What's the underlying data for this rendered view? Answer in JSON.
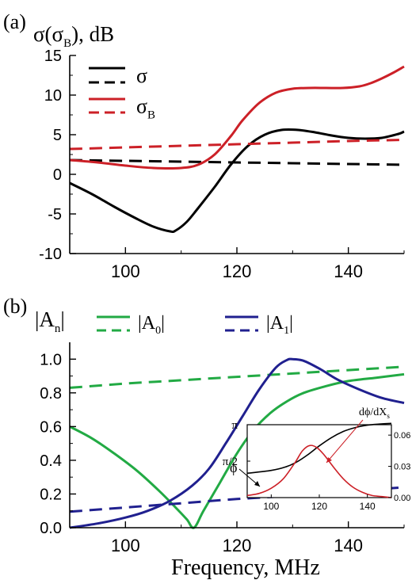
{
  "colors": {
    "black": "#000000",
    "red": "#cc2027",
    "green": "#22aa44",
    "navy": "#20208f"
  },
  "xlabel": "Frequency, MHz",
  "chart_data": [
    {
      "panel_label": "(a)",
      "type": "line",
      "ylabel": "σ(σ",
      "ylabel_sub": "B",
      "ylabel_tail": "), dB",
      "xlim": [
        90,
        150
      ],
      "ylim": [
        -10,
        15
      ],
      "xticks": [
        100,
        120,
        140
      ],
      "xtick_labels": [
        "100",
        "120",
        "140"
      ],
      "yticks": [
        -10,
        -5,
        0,
        5,
        10,
        15
      ],
      "ytick_labels": [
        "-10",
        "-5",
        "0",
        "5",
        "10",
        "15"
      ],
      "legend": [
        {
          "text": "σ",
          "sub": "",
          "solid": "#000000",
          "dashed": "#000000"
        },
        {
          "text": "σ",
          "sub": "B",
          "solid": "#cc2027",
          "dashed": "#cc2027"
        }
      ],
      "series": [
        {
          "color": "#000000",
          "dash": false,
          "x": [
            90,
            94,
            98,
            102,
            105,
            108,
            109,
            111,
            113,
            116,
            119,
            122,
            125,
            128,
            131,
            134,
            137,
            140,
            143,
            146,
            149,
            150
          ],
          "y": [
            -1.1,
            -2.5,
            -4.1,
            -5.6,
            -6.6,
            -7.2,
            -7.1,
            -6.0,
            -4.3,
            -1.6,
            1.3,
            3.6,
            5.0,
            5.6,
            5.6,
            5.3,
            4.9,
            4.6,
            4.5,
            4.6,
            5.1,
            5.4
          ]
        },
        {
          "color": "#000000",
          "dash": true,
          "x": [
            90,
            100,
            110,
            120,
            130,
            140,
            150
          ],
          "y": [
            1.8,
            1.7,
            1.6,
            1.5,
            1.4,
            1.3,
            1.2
          ]
        },
        {
          "color": "#cc2027",
          "dash": false,
          "x": [
            90,
            95,
            100,
            105,
            110,
            113,
            116,
            119,
            121,
            124,
            127,
            130,
            133,
            136,
            139,
            142,
            144,
            146,
            148,
            150
          ],
          "y": [
            1.8,
            1.5,
            1.1,
            0.8,
            0.8,
            1.2,
            2.5,
            4.9,
            6.8,
            9.0,
            10.3,
            10.8,
            10.9,
            10.9,
            10.9,
            11.1,
            11.5,
            12.1,
            12.8,
            13.6
          ]
        },
        {
          "color": "#cc2027",
          "dash": true,
          "x": [
            90,
            100,
            110,
            120,
            130,
            140,
            150
          ],
          "y": [
            3.2,
            3.4,
            3.6,
            3.8,
            4.0,
            4.2,
            4.35
          ]
        }
      ]
    },
    {
      "panel_label": "(b)",
      "type": "line",
      "ylabel": "|A",
      "ylabel_sub": "n",
      "ylabel_tail": "|",
      "xlim": [
        90,
        150
      ],
      "ylim": [
        0,
        1.1
      ],
      "xticks": [
        100,
        120,
        140
      ],
      "xtick_labels": [
        "100",
        "120",
        "140"
      ],
      "yticks": [
        0,
        0.2,
        0.4,
        0.6,
        0.8,
        1.0
      ],
      "ytick_labels": [
        "0.0",
        "0.2",
        "0.4",
        "0.6",
        "0.8",
        "1.0"
      ],
      "legend": [
        {
          "text": "|A",
          "sub": "0",
          "tail": "|",
          "solid": "#22aa44",
          "dashed": "#22aa44"
        },
        {
          "text": "|A",
          "sub": "1",
          "tail": "|",
          "solid": "#20208f",
          "dashed": "#20208f"
        }
      ],
      "series": [
        {
          "color": "#22aa44",
          "dash": false,
          "x": [
            90,
            94,
            98,
            102,
            106,
            109,
            111,
            112.3,
            114,
            117,
            120,
            123,
            126,
            129,
            132,
            136,
            140,
            145,
            150
          ],
          "y": [
            0.6,
            0.53,
            0.44,
            0.34,
            0.22,
            0.12,
            0.05,
            0.0,
            0.1,
            0.27,
            0.44,
            0.58,
            0.68,
            0.75,
            0.8,
            0.84,
            0.87,
            0.89,
            0.91
          ]
        },
        {
          "color": "#22aa44",
          "dash": true,
          "x": [
            90,
            100,
            110,
            120,
            130,
            140,
            150
          ],
          "y": [
            0.83,
            0.855,
            0.875,
            0.895,
            0.915,
            0.935,
            0.955
          ]
        },
        {
          "color": "#20208f",
          "dash": false,
          "x": [
            90,
            95,
            100,
            104,
            108,
            112,
            115,
            118,
            121,
            124,
            127,
            129,
            130,
            132,
            135,
            138,
            142,
            146,
            150
          ],
          "y": [
            0.0,
            0.025,
            0.06,
            0.1,
            0.16,
            0.25,
            0.35,
            0.5,
            0.66,
            0.82,
            0.95,
            0.995,
            1.0,
            0.99,
            0.94,
            0.88,
            0.82,
            0.77,
            0.74
          ]
        },
        {
          "color": "#20208f",
          "dash": true,
          "x": [
            90,
            100,
            110,
            120,
            130,
            140,
            150
          ],
          "y": [
            0.095,
            0.12,
            0.145,
            0.17,
            0.19,
            0.215,
            0.24
          ]
        }
      ]
    },
    {
      "panel_label": "inset",
      "type": "line",
      "xlim": [
        90,
        150
      ],
      "ylim_left": [
        0,
        3.1416
      ],
      "ylim_right": [
        0,
        0.07
      ],
      "xticks": [
        100,
        120,
        140
      ],
      "xtick_labels": [
        "100",
        "120",
        "140"
      ],
      "yticks_left_labels": [
        "π",
        "π/2"
      ],
      "yticks_right": [
        0,
        0.03,
        0.06
      ],
      "ytick_right_labels": [
        "0.00",
        "0.03",
        "0.06"
      ],
      "annotations": [
        "ϕ",
        "dϕ/dX",
        "s"
      ],
      "series": [
        {
          "color": "#000000",
          "axis": "left",
          "x": [
            90,
            100,
            106,
            110,
            115,
            120,
            125,
            130,
            135,
            140,
            145,
            150
          ],
          "y": [
            1.05,
            1.17,
            1.32,
            1.5,
            1.83,
            2.23,
            2.58,
            2.85,
            3.02,
            3.12,
            3.17,
            3.2
          ]
        },
        {
          "color": "#cc2027",
          "axis": "right",
          "x": [
            90,
            95,
            100,
            105,
            110,
            113,
            116,
            119,
            122,
            126,
            130,
            134,
            138,
            142,
            146,
            150
          ],
          "y": [
            0.002,
            0.004,
            0.009,
            0.018,
            0.034,
            0.045,
            0.05,
            0.048,
            0.041,
            0.029,
            0.018,
            0.01,
            0.005,
            0.002,
            0.001,
            0.0
          ]
        }
      ]
    }
  ]
}
